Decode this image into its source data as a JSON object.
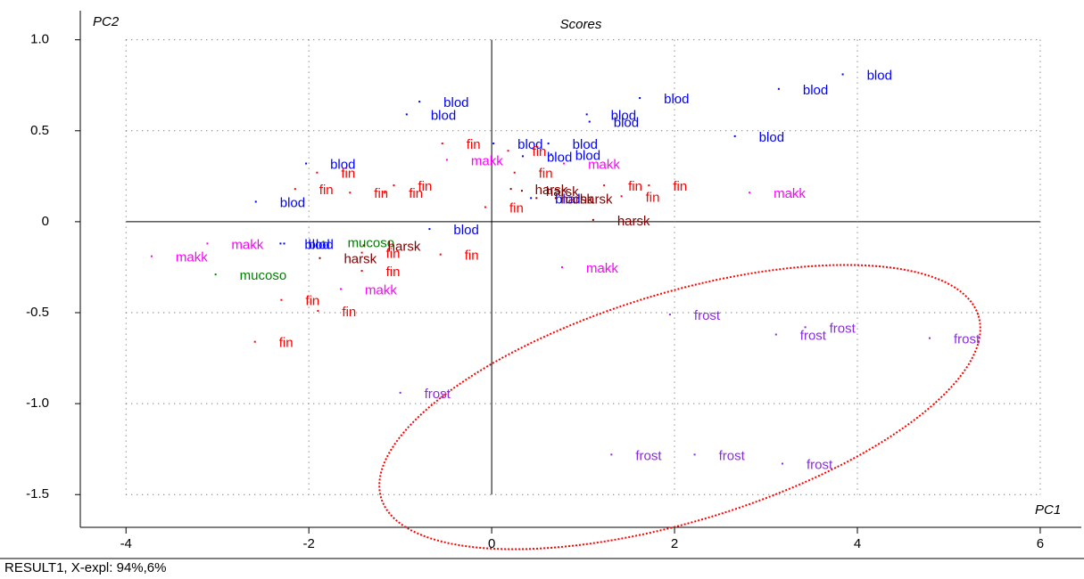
{
  "chart_data": {
    "type": "scatter",
    "title": "Scores",
    "x_label": "PC1",
    "y_label": "PC2",
    "footer": "RESULT1, X-expl: 94%,6%",
    "xlim": [
      -4.5,
      6.43
    ],
    "ylim": [
      -1.68,
      1.16
    ],
    "xticks": [
      -4,
      -2,
      0,
      2,
      4,
      6
    ],
    "yticks": [
      {
        "value": 1,
        "label": "1.0"
      },
      0.5,
      0,
      -0.5,
      {
        "value": -1,
        "label": "-1.0"
      },
      -1.5
    ],
    "grid": true,
    "series": [
      {
        "name": "blod",
        "color": "#0000ff",
        "x": [
          3.84,
          3.14,
          2.66,
          1.62,
          1.04,
          1.07,
          -0.79,
          -0.93,
          0.02,
          0.62,
          0.65,
          0.34,
          -2.03,
          -2.58,
          -2.31,
          -2.27,
          -0.68,
          0.43
        ],
        "values": [
          0.81,
          0.73,
          0.47,
          0.68,
          0.59,
          0.55,
          0.66,
          0.59,
          0.43,
          0.43,
          0.37,
          0.36,
          0.32,
          0.11,
          -0.12,
          -0.12,
          -0.04,
          0.13
        ]
      },
      {
        "name": "fin",
        "color": "#ff0000",
        "x": [
          -0.54,
          0.18,
          0.25,
          -0.07,
          -1.91,
          -2.15,
          -1.55,
          -1.17,
          -1.07,
          1.23,
          1.42,
          1.72,
          -1.42,
          -1.42,
          -0.56,
          -2.3,
          -1.9,
          -2.59
        ],
        "values": [
          0.43,
          0.39,
          0.27,
          0.08,
          0.27,
          0.18,
          0.16,
          0.16,
          0.2,
          0.2,
          0.14,
          0.2,
          -0.17,
          -0.27,
          -0.18,
          -0.43,
          -0.49,
          -0.66
        ]
      },
      {
        "name": "makk",
        "color": "#ff00ff",
        "x": [
          -3.72,
          -3.11,
          -1.65,
          -0.49,
          0.79,
          0.77,
          2.82
        ],
        "values": [
          -0.19,
          -0.12,
          -0.37,
          0.34,
          0.32,
          -0.25,
          0.16
        ]
      },
      {
        "name": "mucoso",
        "color": "#008000",
        "x": [
          -1.84,
          -3.02
        ],
        "values": [
          -0.11,
          -0.29
        ]
      },
      {
        "name": "harsk",
        "color": "#800000",
        "x": [
          -1.4,
          -1.88,
          1.11,
          0.21,
          0.33,
          0.49,
          0.7
        ],
        "values": [
          -0.13,
          -0.2,
          0.01,
          0.18,
          0.17,
          0.13,
          0.13
        ]
      },
      {
        "name": "frost",
        "color": "#8a2be2",
        "x": [
          -1.0,
          1.95,
          3.11,
          3.43,
          4.79,
          1.31,
          2.22,
          3.18
        ],
        "values": [
          -0.94,
          -0.51,
          -0.62,
          -0.58,
          -0.64,
          -1.28,
          -1.28,
          -1.33
        ]
      }
    ]
  }
}
